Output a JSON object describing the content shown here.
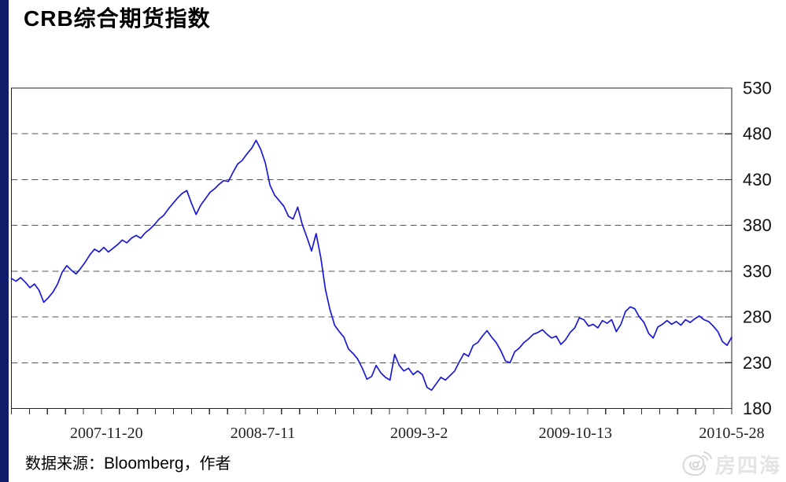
{
  "page_title": "CRB综合期货指数",
  "source_line": {
    "prefix": "数据来源：",
    "vendor": "Bloomberg",
    "suffix": "，作者"
  },
  "watermark": {
    "text": "房四海",
    "logo": "snail-swirl-signal-logo",
    "color": "#e4e4e4"
  },
  "colors": {
    "line": "#1a1ad6",
    "stripe": "#0f1d6b",
    "grid": "#555555",
    "frame": "#222222"
  },
  "chart_data": {
    "type": "line",
    "title": "CRB综合期货指数",
    "xlabel": "",
    "ylabel": "",
    "ylim": [
      180,
      530
    ],
    "y_ticks": [
      530,
      480,
      430,
      380,
      330,
      280,
      230,
      180
    ],
    "y_gridlines": [
      480,
      430,
      380,
      330,
      280,
      230
    ],
    "grid": "horizontal-dashed",
    "legend": "none",
    "x_tick_labels": [
      "2007-11-20",
      "2008-7-11",
      "2009-3-2",
      "2009-10-13",
      "2010-5-28"
    ],
    "x_tick_label_positions": [
      0.132,
      0.349,
      0.566,
      0.783,
      1.0
    ],
    "x_minor_tick_count": 40,
    "series": [
      {
        "name": "CRB综合期货指数",
        "color": "#1a1ad6",
        "values": [
          322,
          319,
          323,
          318,
          312,
          316,
          309,
          296,
          301,
          307,
          316,
          329,
          336,
          331,
          327,
          333,
          340,
          348,
          354,
          351,
          356,
          351,
          355,
          359,
          364,
          361,
          366,
          369,
          366,
          372,
          376,
          381,
          387,
          391,
          398,
          404,
          410,
          415,
          418,
          404,
          392,
          402,
          409,
          416,
          420,
          425,
          429,
          428,
          438,
          447,
          451,
          458,
          464,
          473,
          463,
          448,
          424,
          413,
          407,
          401,
          390,
          387,
          400,
          381,
          367,
          352,
          371,
          345,
          310,
          288,
          271,
          264,
          258,
          245,
          240,
          234,
          224,
          212,
          215,
          227,
          219,
          214,
          211,
          239,
          227,
          221,
          224,
          217,
          221,
          217,
          203,
          200,
          207,
          214,
          211,
          216,
          221,
          231,
          240,
          237,
          249,
          252,
          259,
          265,
          258,
          252,
          243,
          232,
          230,
          242,
          246,
          252,
          256,
          261,
          263,
          266,
          261,
          257,
          259,
          250,
          255,
          263,
          268,
          279,
          277,
          270,
          272,
          268,
          276,
          273,
          277,
          264,
          272,
          286,
          291,
          289,
          280,
          274,
          262,
          257,
          269,
          272,
          276,
          272,
          275,
          271,
          277,
          274,
          278,
          281,
          277,
          275,
          270,
          264,
          253,
          249,
          258
        ]
      }
    ]
  }
}
